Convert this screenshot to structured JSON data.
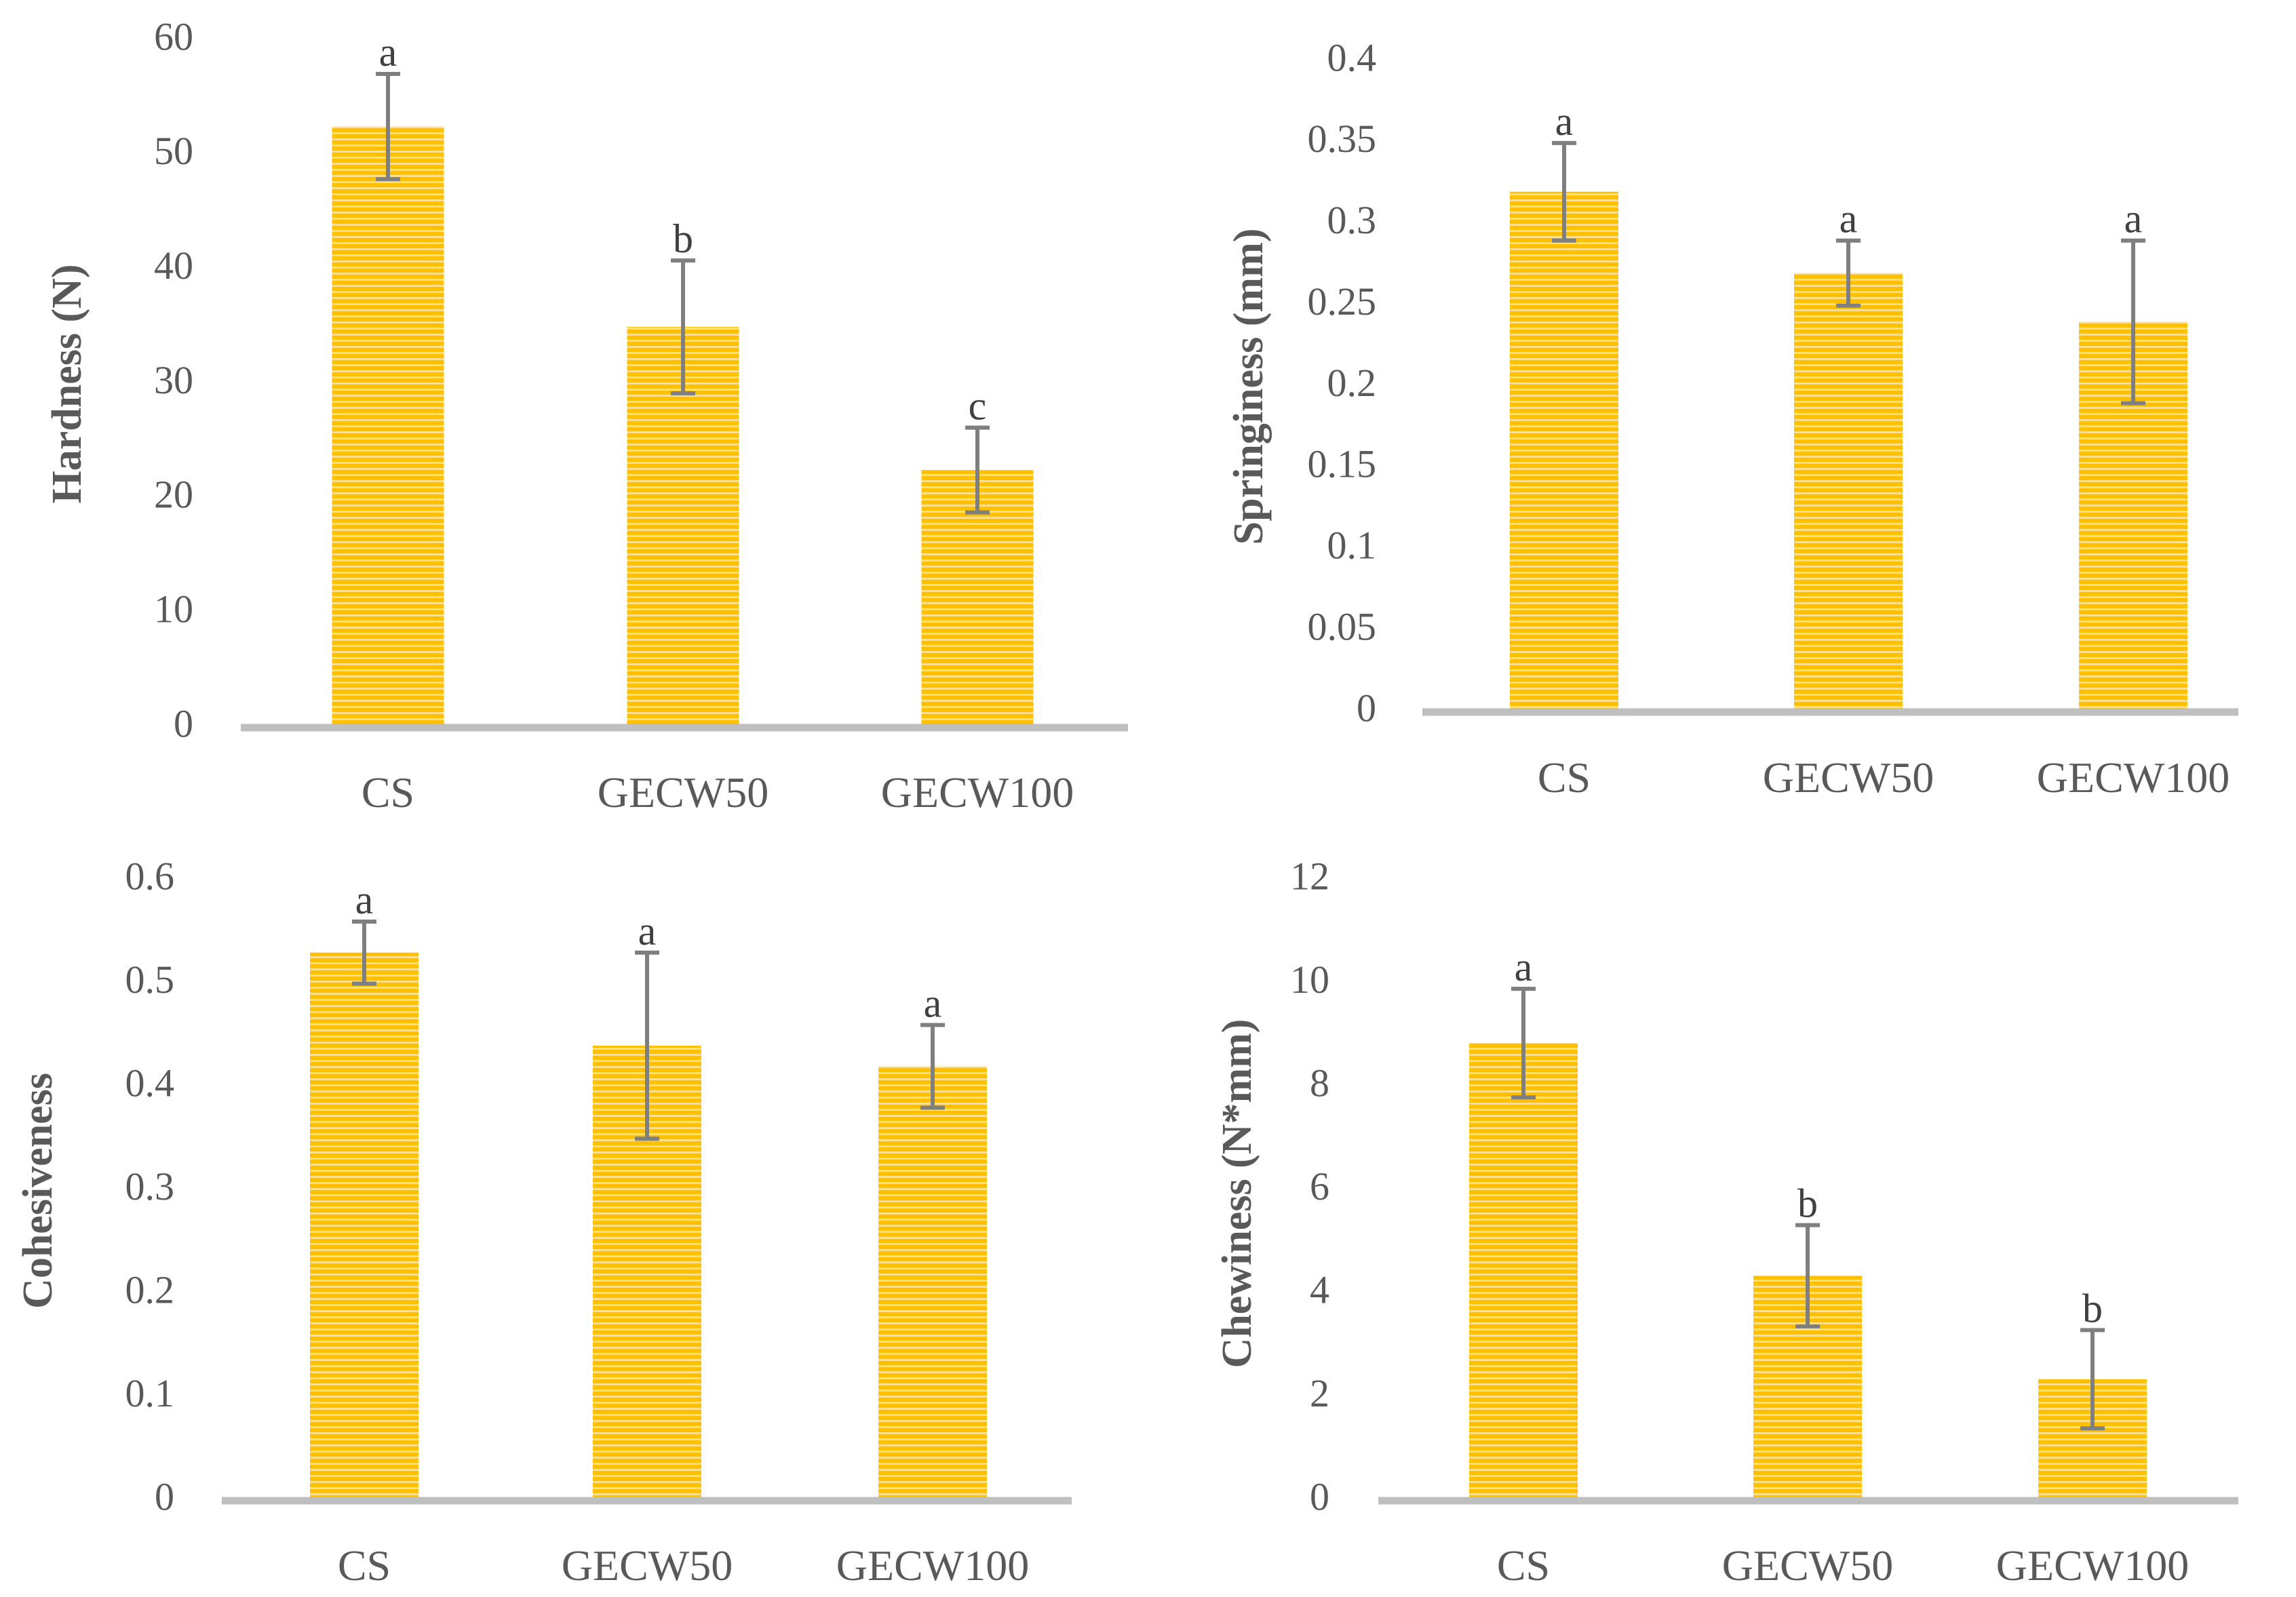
{
  "colors": {
    "bar": "#ffc000",
    "bar_stripe": "#ffe08a",
    "axis": "#bfbfbf",
    "error": "#7f7f7f",
    "text": "#595959"
  },
  "chart_data": [
    {
      "type": "bar",
      "id": "hardness",
      "title": "",
      "categories": [
        "CS",
        "GECW50",
        "GECW100"
      ],
      "values": [
        52.5,
        35.0,
        22.5
      ],
      "errors": [
        4.6,
        5.8,
        3.7
      ],
      "significance": [
        "a",
        "b",
        "c"
      ],
      "xlabel": "",
      "ylabel": "Hardness (N)",
      "ylim": [
        0,
        60
      ],
      "yticks": [
        0,
        10,
        20,
        30,
        40,
        50,
        60
      ],
      "ytick_labels": [
        "0",
        "10",
        "20",
        "30",
        "40",
        "50",
        "60"
      ],
      "grid": false
    },
    {
      "type": "bar",
      "id": "springiness",
      "title": "",
      "categories": [
        "CS",
        "GECW50",
        "GECW100"
      ],
      "values": [
        0.32,
        0.27,
        0.24
      ],
      "errors": [
        0.03,
        0.02,
        0.05
      ],
      "significance": [
        "a",
        "a",
        "a"
      ],
      "xlabel": "",
      "ylabel": "Springiness (mm)",
      "ylim": [
        0,
        0.4
      ],
      "yticks": [
        0,
        0.05,
        0.1,
        0.15,
        0.2,
        0.25,
        0.3,
        0.35,
        0.4
      ],
      "ytick_labels": [
        "0",
        "0.05",
        "0.1",
        "0.15",
        "0.2",
        "0.25",
        "0.3",
        "0.35",
        "0.4"
      ],
      "grid": false
    },
    {
      "type": "bar",
      "id": "cohesiveness",
      "title": "",
      "categories": [
        "CS",
        "GECW50",
        "GECW100"
      ],
      "values": [
        0.53,
        0.44,
        0.42
      ],
      "errors": [
        0.03,
        0.09,
        0.04
      ],
      "significance": [
        "a",
        "a",
        "a"
      ],
      "xlabel": "",
      "ylabel": "Cohesiveness",
      "ylim": [
        0,
        0.6
      ],
      "yticks": [
        0,
        0.1,
        0.2,
        0.3,
        0.4,
        0.5,
        0.6
      ],
      "ytick_labels": [
        "0",
        "0.1",
        "0.2",
        "0.3",
        "0.4",
        "0.5",
        "0.6"
      ],
      "grid": false
    },
    {
      "type": "bar",
      "id": "chewiness",
      "title": "",
      "categories": [
        "CS",
        "GECW50",
        "GECW100"
      ],
      "values": [
        8.85,
        4.35,
        2.35
      ],
      "errors": [
        1.05,
        0.98,
        0.95
      ],
      "significance": [
        "a",
        "b",
        "b"
      ],
      "xlabel": "",
      "ylabel": "Chewiness (N*mm)",
      "ylim": [
        0,
        12
      ],
      "yticks": [
        0,
        2,
        4,
        6,
        8,
        10,
        12
      ],
      "ytick_labels": [
        "0",
        "2",
        "4",
        "6",
        "8",
        "10",
        "12"
      ],
      "grid": false
    }
  ]
}
